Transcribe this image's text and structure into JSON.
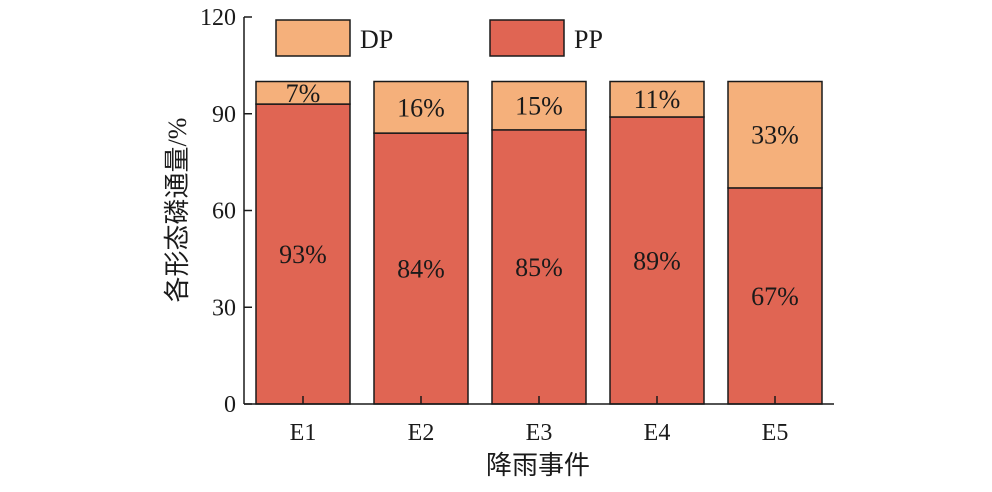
{
  "chart_data": {
    "type": "bar",
    "stacked": true,
    "categories": [
      "E1",
      "E2",
      "E3",
      "E4",
      "E5"
    ],
    "series": [
      {
        "name": "PP",
        "color": "#e06553",
        "values": [
          93,
          84,
          85,
          89,
          67
        ],
        "labels": [
          "93%",
          "84%",
          "85%",
          "89%",
          "67%"
        ]
      },
      {
        "name": "DP",
        "color": "#f5b07b",
        "values": [
          7,
          16,
          15,
          11,
          33
        ],
        "labels": [
          "7%",
          "16%",
          "15%",
          "11%",
          "33%"
        ]
      }
    ],
    "legend_order": [
      "DP",
      "PP"
    ],
    "xlabel": "降雨事件",
    "ylabel": "各形态磷通量/%",
    "ylim": [
      0,
      120
    ],
    "yticks": [
      0,
      30,
      60,
      90,
      120
    ],
    "grid": false,
    "legend_position": "top-left"
  }
}
